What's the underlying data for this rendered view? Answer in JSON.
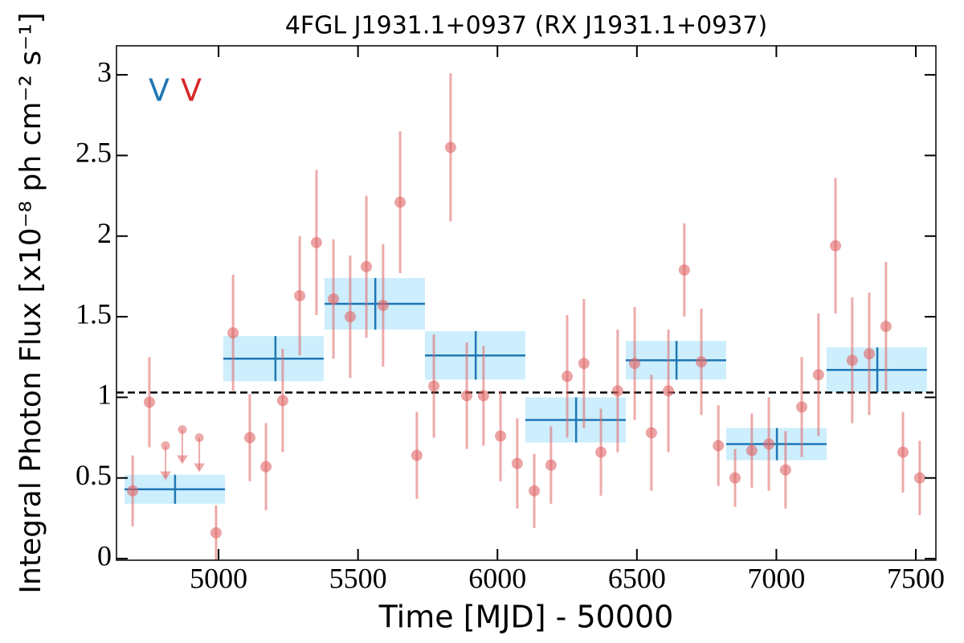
{
  "chart_data": {
    "type": "scatter",
    "title": "4FGL J1931.1+0937 (RX J1931.1+0937)",
    "x_label": "Time [MJD] - 50000",
    "y_label": "Integral Photon Flux [x10⁻⁸ ph cm⁻² s⁻¹]",
    "xlim": [
      4634,
      7572
    ],
    "ylim": [
      -0.01,
      3.18
    ],
    "xticks": [
      5000,
      5500,
      6000,
      6500,
      7000,
      7500
    ],
    "yticks": [
      0,
      0.5,
      1,
      1.5,
      2,
      2.5,
      3
    ],
    "reference_line": {
      "value": 1.03,
      "color": "#000000"
    },
    "annotations": [
      {
        "text": "V",
        "color": "#1f77b4"
      },
      {
        "text": "V",
        "color": "#d62728"
      }
    ],
    "points": {
      "color": "#e06666",
      "x": [
        4692,
        4752,
        4991,
        5052,
        5112,
        5170,
        5230,
        5291,
        5351,
        5412,
        5472,
        5530,
        5590,
        5651,
        5711,
        5772,
        5832,
        5890,
        5950,
        6011,
        6071,
        6132,
        6192,
        6250,
        6310,
        6371,
        6431,
        6492,
        6552,
        6613,
        6670,
        6731,
        6792,
        6852,
        6912,
        6973,
        7033,
        7091,
        7151,
        7212,
        7272,
        7333,
        7393,
        7454,
        7514
      ],
      "values": [
        0.42,
        0.97,
        0.16,
        1.4,
        0.75,
        0.57,
        0.98,
        1.63,
        1.96,
        1.61,
        1.5,
        1.81,
        1.57,
        2.21,
        0.64,
        1.07,
        2.55,
        1.01,
        1.01,
        0.76,
        0.59,
        0.42,
        0.58,
        1.13,
        1.21,
        0.66,
        1.04,
        1.21,
        0.78,
        1.04,
        1.79,
        1.22,
        0.7,
        0.5,
        0.67,
        0.71,
        0.55,
        0.94,
        1.14,
        1.94,
        1.23,
        1.27,
        1.44,
        0.66,
        0.5
      ],
      "yerr": [
        0.22,
        0.28,
        0.17,
        0.36,
        0.27,
        0.27,
        0.32,
        0.37,
        0.45,
        0.37,
        0.38,
        0.44,
        0.38,
        0.44,
        0.27,
        0.32,
        0.46,
        0.33,
        0.31,
        0.28,
        0.28,
        0.23,
        0.24,
        0.38,
        0.4,
        0.27,
        0.38,
        0.35,
        0.36,
        0.38,
        0.29,
        0.33,
        0.25,
        0.18,
        0.23,
        0.29,
        0.24,
        0.31,
        0.38,
        0.42,
        0.39,
        0.38,
        0.4,
        0.25,
        0.23
      ]
    },
    "upper_limits": {
      "color": "#e06666",
      "x": [
        4810,
        4870,
        4931
      ],
      "values": [
        0.7,
        0.8,
        0.75
      ]
    },
    "bins": {
      "color": "#1f77b4",
      "fill": "#cdeefc",
      "x_start": [
        4663,
        5017,
        5380,
        5740,
        6100,
        6460,
        6820,
        7180
      ],
      "x_end": [
        5023,
        5377,
        5740,
        6100,
        6460,
        6820,
        7180,
        7540
      ],
      "x": [
        4844,
        5204,
        5562,
        5922,
        6282,
        6642,
        7002,
        7362
      ],
      "values": [
        0.43,
        1.24,
        1.58,
        1.26,
        0.86,
        1.23,
        0.71,
        1.17
      ],
      "yerr": [
        0.09,
        0.14,
        0.16,
        0.15,
        0.14,
        0.12,
        0.1,
        0.14
      ]
    }
  }
}
